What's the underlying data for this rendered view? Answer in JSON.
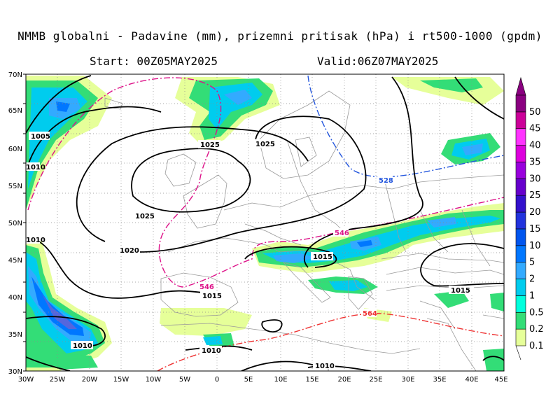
{
  "header": {
    "title": "NMMB globalni - Padavine (mm), prizemni pritisak (hPa) i rt500-1000 (gpdm)",
    "start": "Start: 00Z05MAY2025",
    "valid": "Valid:06Z07MAY2025"
  },
  "axes": {
    "lat_labels": [
      "70N",
      "65N",
      "60N",
      "55N",
      "50N",
      "45N",
      "40N",
      "35N",
      "30N"
    ],
    "lon_labels": [
      "30W",
      "25W",
      "20W",
      "15W",
      "10W",
      "5W",
      "0",
      "5E",
      "10E",
      "15E",
      "20E",
      "25E",
      "30E",
      "35E",
      "40E",
      "45E"
    ]
  },
  "isobar_labels": [
    "1005",
    "1010",
    "1025",
    "1025",
    "1025",
    "1020",
    "1015",
    "1015",
    "1015",
    "1010",
    "1010",
    "1010",
    "1010"
  ],
  "thickness_labels": [
    "528",
    "546",
    "546",
    "564"
  ],
  "legend": {
    "levels": [
      "0.1",
      "0.2",
      "0.5",
      "1",
      "2",
      "5",
      "10",
      "15",
      "20",
      "25",
      "30",
      "35",
      "40",
      "45",
      "50"
    ],
    "colors": [
      "#e6ff99",
      "#33dd77",
      "#00ffdd",
      "#00ccee",
      "#33aaff",
      "#0077ff",
      "#0055ee",
      "#2233dd",
      "#3311cc",
      "#6600cc",
      "#9900dd",
      "#dd00dd",
      "#ff33ff",
      "#cc0099",
      "#8a0080"
    ]
  },
  "colors": {
    "isobar": "#000000",
    "coast": "#9a9a9a",
    "grid": "#8a8a8a",
    "thickness_528": "#2255dd",
    "thickness_546": "#dd1188",
    "thickness_564": "#ee3333"
  }
}
